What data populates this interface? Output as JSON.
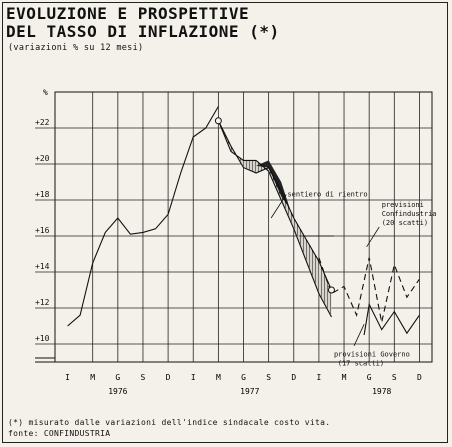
{
  "title_line1": "EVOLUZIONE E PROSPETTIVE",
  "title_line2": "DEL TASSO DI INFLAZIONE (*)",
  "subtitle": "(variazioni % su 12 mesi)",
  "footnote": "(*) misurato dalle variazioni dell'indice sindacale costo vita.",
  "source": "fonte: CONFINDUSTRIA",
  "chart_data": {
    "type": "line",
    "y_unit_label": "%",
    "ylim": [
      9,
      24
    ],
    "xlim": [
      0,
      30
    ],
    "yticks": [
      10,
      12,
      14,
      16,
      18,
      20,
      22
    ],
    "ytick_labels": [
      "+10",
      "+12",
      "+14",
      "+16",
      "+18",
      "+20",
      "+22"
    ],
    "xticks": [
      0,
      3,
      6,
      9,
      12,
      15,
      18,
      21,
      24,
      27,
      30
    ],
    "xtick_labels": [
      "I",
      "M",
      "G",
      "S",
      "D",
      "I",
      "M",
      "G",
      "S",
      "D",
      "I",
      "M",
      "G",
      "S",
      "D"
    ],
    "xtick_positions": [
      -1,
      1,
      3,
      5,
      7,
      9,
      11,
      13,
      15,
      17,
      19,
      21,
      23,
      25,
      27
    ],
    "year_labels": [
      {
        "text": "1976",
        "x": 3
      },
      {
        "text": "1977",
        "x": 13.5
      },
      {
        "text": "1978",
        "x": 24
      }
    ],
    "grid": true,
    "series": [
      {
        "style": "solid",
        "x": [
          -1,
          0,
          1,
          2,
          3,
          4,
          5,
          6,
          7,
          8,
          9,
          10,
          11
        ],
        "values": [
          11,
          11.6,
          14.5,
          16.2,
          17,
          16.1,
          16.2,
          16.4,
          17.2,
          19.5,
          21.5,
          22,
          23.2
        ]
      },
      {
        "style": "solid",
        "x": [
          11,
          12,
          13,
          14,
          15,
          16,
          17,
          18,
          19,
          20
        ],
        "values": [
          22.4,
          21,
          19.8,
          19.5,
          19.8,
          18.5,
          17,
          15.8,
          14.6,
          13
        ]
      },
      {
        "style": "solid",
        "x": [
          11,
          12,
          13,
          14,
          15,
          16,
          17,
          18,
          19,
          20
        ],
        "values": [
          22.4,
          20.7,
          20.2,
          20.2,
          19.6,
          18,
          16.4,
          14.6,
          12.8,
          11.5
        ]
      },
      {
        "style": "dashed",
        "x": [
          19,
          20,
          21,
          22,
          23,
          24,
          25,
          26,
          27
        ],
        "values": [
          14.8,
          12.8,
          13.2,
          11.6,
          14.8,
          11.2,
          14.4,
          12.6,
          13.6
        ]
      },
      {
        "style": "solid",
        "x": [
          22.6,
          23,
          24,
          25,
          26,
          27
        ],
        "values": [
          10.5,
          12.2,
          10.8,
          11.8,
          10.6,
          11.6
        ]
      }
    ],
    "markers": [
      {
        "x": 11,
        "y": 22.4
      },
      {
        "x": 20,
        "y": 13
      }
    ],
    "annotations": [
      {
        "text": "sentiero di rientro",
        "x": 16.5,
        "y": 18.2
      },
      {
        "text": "previsioni",
        "x": 24,
        "y": 17.6
      },
      {
        "text": "Confindustria",
        "x": 24,
        "y": 17.1
      },
      {
        "text": "(20 scatti)",
        "x": 24,
        "y": 16.6
      },
      {
        "text": "provisioni Governo",
        "x": 20.2,
        "y": 9.3
      },
      {
        "text": "(17 scatti)",
        "x": 20.5,
        "y": 8.8
      }
    ]
  }
}
